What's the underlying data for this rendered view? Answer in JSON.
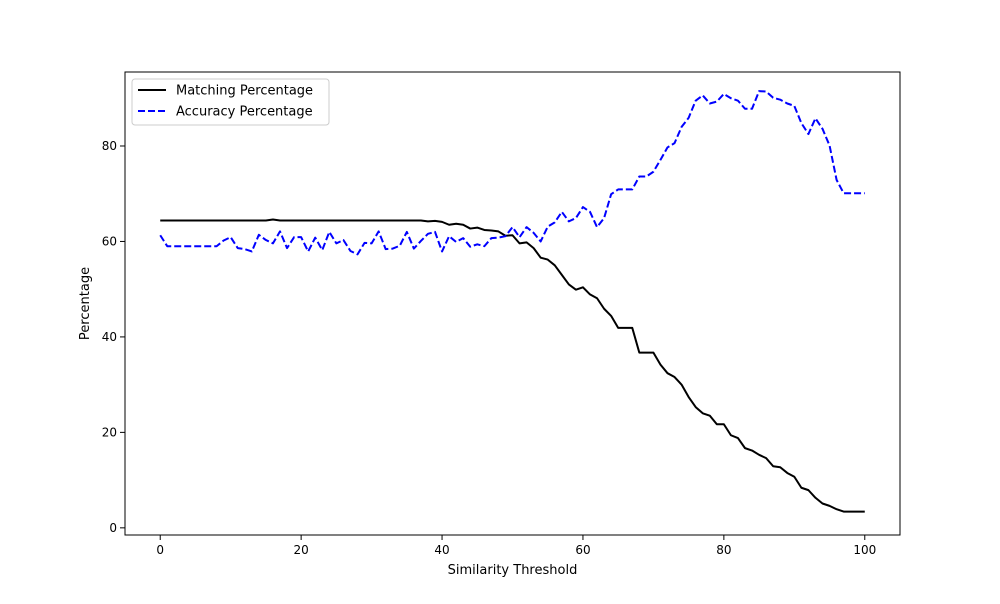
{
  "chart_data": {
    "type": "line",
    "title": "",
    "xlabel": "Similarity Threshold",
    "ylabel": "Percentage",
    "xlim": [
      -5,
      105
    ],
    "ylim": [
      -1.5,
      95.5
    ],
    "xticks": [
      0,
      20,
      40,
      60,
      80,
      100
    ],
    "yticks": [
      0,
      20,
      40,
      60,
      80
    ],
    "grid": false,
    "legend_position": "top-left",
    "series": [
      {
        "name": "Matching Percentage",
        "color": "#000000",
        "style": "solid",
        "points": [
          [
            0,
            64.4
          ],
          [
            1,
            64.4
          ],
          [
            2,
            64.4
          ],
          [
            3,
            64.4
          ],
          [
            4,
            64.4
          ],
          [
            5,
            64.4
          ],
          [
            6,
            64.4
          ],
          [
            7,
            64.4
          ],
          [
            8,
            64.4
          ],
          [
            9,
            64.4
          ],
          [
            10,
            64.4
          ],
          [
            11,
            64.4
          ],
          [
            12,
            64.4
          ],
          [
            13,
            64.4
          ],
          [
            14,
            64.4
          ],
          [
            15,
            64.4
          ],
          [
            16,
            64.6
          ],
          [
            17,
            64.4
          ],
          [
            18,
            64.4
          ],
          [
            19,
            64.4
          ],
          [
            20,
            64.4
          ],
          [
            21,
            64.4
          ],
          [
            22,
            64.4
          ],
          [
            23,
            64.4
          ],
          [
            24,
            64.4
          ],
          [
            25,
            64.4
          ],
          [
            26,
            64.4
          ],
          [
            27,
            64.4
          ],
          [
            28,
            64.4
          ],
          [
            29,
            64.4
          ],
          [
            30,
            64.4
          ],
          [
            31,
            64.4
          ],
          [
            32,
            64.4
          ],
          [
            33,
            64.4
          ],
          [
            34,
            64.4
          ],
          [
            35,
            64.4
          ],
          [
            36,
            64.4
          ],
          [
            37,
            64.4
          ],
          [
            38,
            64.2
          ],
          [
            39,
            64.3
          ],
          [
            40,
            64.1
          ],
          [
            41,
            63.5
          ],
          [
            42,
            63.7
          ],
          [
            43,
            63.5
          ],
          [
            44,
            62.7
          ],
          [
            45,
            62.9
          ],
          [
            46,
            62.4
          ],
          [
            47,
            62.3
          ],
          [
            48,
            62.1
          ],
          [
            49,
            61.2
          ],
          [
            50,
            61.3
          ],
          [
            51,
            59.6
          ],
          [
            52,
            59.8
          ],
          [
            53,
            58.6
          ],
          [
            54,
            56.6
          ],
          [
            55,
            56.2
          ],
          [
            56,
            55.0
          ],
          [
            57,
            53.0
          ],
          [
            58,
            51.0
          ],
          [
            59,
            49.9
          ],
          [
            60,
            50.4
          ],
          [
            61,
            48.9
          ],
          [
            62,
            48.1
          ],
          [
            63,
            45.9
          ],
          [
            64,
            44.4
          ],
          [
            65,
            41.9
          ],
          [
            66,
            41.9
          ],
          [
            67,
            41.9
          ],
          [
            68,
            36.7
          ],
          [
            69,
            36.7
          ],
          [
            70,
            36.7
          ],
          [
            71,
            34.2
          ],
          [
            72,
            32.4
          ],
          [
            73,
            31.6
          ],
          [
            74,
            30.0
          ],
          [
            75,
            27.4
          ],
          [
            76,
            25.3
          ],
          [
            77,
            24.0
          ],
          [
            78,
            23.5
          ],
          [
            79,
            21.7
          ],
          [
            80,
            21.7
          ],
          [
            81,
            19.4
          ],
          [
            82,
            18.8
          ],
          [
            83,
            16.7
          ],
          [
            84,
            16.2
          ],
          [
            85,
            15.3
          ],
          [
            86,
            14.6
          ],
          [
            87,
            12.9
          ],
          [
            88,
            12.7
          ],
          [
            89,
            11.5
          ],
          [
            90,
            10.7
          ],
          [
            91,
            8.4
          ],
          [
            92,
            7.9
          ],
          [
            93,
            6.3
          ],
          [
            94,
            5.1
          ],
          [
            95,
            4.6
          ],
          [
            96,
            3.9
          ],
          [
            97,
            3.4
          ],
          [
            98,
            3.4
          ],
          [
            99,
            3.4
          ],
          [
            100,
            3.4
          ]
        ]
      },
      {
        "name": "Accuracy Percentage",
        "color": "#0000ff",
        "style": "dashed",
        "points": [
          [
            0,
            61.3
          ],
          [
            1,
            59.0
          ],
          [
            2,
            59.0
          ],
          [
            3,
            59.0
          ],
          [
            4,
            59.0
          ],
          [
            5,
            59.0
          ],
          [
            6,
            59.0
          ],
          [
            7,
            59.0
          ],
          [
            8,
            59.0
          ],
          [
            9,
            60.2
          ],
          [
            10,
            60.9
          ],
          [
            11,
            58.6
          ],
          [
            12,
            58.4
          ],
          [
            13,
            57.9
          ],
          [
            14,
            61.4
          ],
          [
            15,
            60.3
          ],
          [
            16,
            59.6
          ],
          [
            17,
            62.1
          ],
          [
            18,
            58.6
          ],
          [
            19,
            60.9
          ],
          [
            20,
            60.9
          ],
          [
            21,
            57.9
          ],
          [
            22,
            60.8
          ],
          [
            23,
            58.2
          ],
          [
            24,
            62.0
          ],
          [
            25,
            59.6
          ],
          [
            26,
            60.3
          ],
          [
            27,
            58.0
          ],
          [
            28,
            57.3
          ],
          [
            29,
            59.7
          ],
          [
            30,
            59.6
          ],
          [
            31,
            62.1
          ],
          [
            32,
            58.4
          ],
          [
            33,
            58.5
          ],
          [
            34,
            59.1
          ],
          [
            35,
            62.0
          ],
          [
            36,
            58.5
          ],
          [
            37,
            60.1
          ],
          [
            38,
            61.6
          ],
          [
            39,
            62.0
          ],
          [
            40,
            57.9
          ],
          [
            41,
            61.1
          ],
          [
            42,
            59.9
          ],
          [
            43,
            60.7
          ],
          [
            44,
            58.9
          ],
          [
            45,
            59.4
          ],
          [
            46,
            59.0
          ],
          [
            47,
            60.7
          ],
          [
            48,
            60.8
          ],
          [
            49,
            61.1
          ],
          [
            50,
            63.0
          ],
          [
            51,
            60.9
          ],
          [
            52,
            63.0
          ],
          [
            53,
            61.8
          ],
          [
            54,
            60.0
          ],
          [
            55,
            63.1
          ],
          [
            56,
            64.0
          ],
          [
            57,
            66.2
          ],
          [
            58,
            64.2
          ],
          [
            59,
            64.9
          ],
          [
            60,
            67.2
          ],
          [
            61,
            66.2
          ],
          [
            62,
            63.0
          ],
          [
            63,
            64.9
          ],
          [
            64,
            69.9
          ],
          [
            65,
            70.9
          ],
          [
            66,
            70.9
          ],
          [
            67,
            70.9
          ],
          [
            68,
            73.6
          ],
          [
            69,
            73.6
          ],
          [
            70,
            74.6
          ],
          [
            71,
            77.1
          ],
          [
            72,
            79.7
          ],
          [
            73,
            80.6
          ],
          [
            74,
            84.0
          ],
          [
            75,
            85.9
          ],
          [
            76,
            89.5
          ],
          [
            77,
            90.6
          ],
          [
            78,
            88.9
          ],
          [
            79,
            89.3
          ],
          [
            80,
            90.9
          ],
          [
            81,
            90.0
          ],
          [
            82,
            89.5
          ],
          [
            83,
            87.8
          ],
          [
            84,
            87.8
          ],
          [
            85,
            91.5
          ],
          [
            86,
            91.4
          ],
          [
            87,
            90.1
          ],
          [
            88,
            89.7
          ],
          [
            89,
            88.9
          ],
          [
            90,
            88.4
          ],
          [
            91,
            84.8
          ],
          [
            92,
            82.5
          ],
          [
            93,
            85.8
          ],
          [
            94,
            83.6
          ],
          [
            95,
            80.1
          ],
          [
            96,
            72.9
          ],
          [
            97,
            70.1
          ],
          [
            98,
            70.1
          ],
          [
            99,
            70.1
          ],
          [
            100,
            70.1
          ]
        ]
      }
    ]
  }
}
